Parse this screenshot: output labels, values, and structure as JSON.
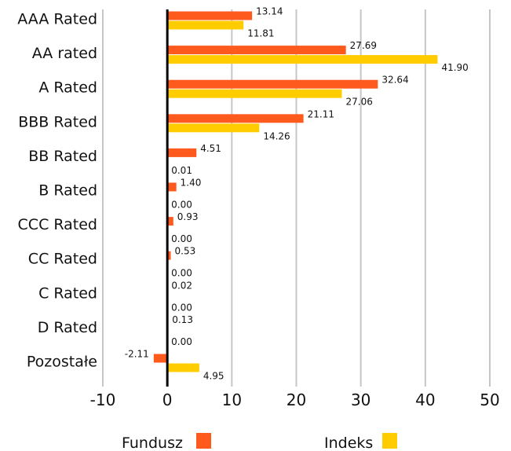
{
  "chart_data": {
    "type": "bar",
    "orientation": "horizontal",
    "categories": [
      "AAA Rated",
      "AA rated",
      "A Rated",
      "BBB Rated",
      "BB Rated",
      "B Rated",
      "CCC Rated",
      "CC Rated",
      "C Rated",
      "D Rated",
      "Pozostałe"
    ],
    "series": [
      {
        "name": "Fundusz",
        "color": "#ff5a1e",
        "values": [
          13.14,
          27.69,
          32.64,
          21.11,
          4.51,
          1.4,
          0.93,
          0.53,
          0.02,
          0.13,
          -2.11
        ],
        "labels": [
          "13.14",
          "27.69",
          "32.64",
          "21.11",
          "4.51",
          "1.40",
          "0.93",
          "0.53",
          "0.02",
          "0.13",
          "-2.11"
        ]
      },
      {
        "name": "Indeks",
        "color": "#ffcc00",
        "values": [
          11.81,
          41.9,
          27.06,
          14.26,
          0.01,
          0.0,
          0.0,
          0.0,
          0.0,
          0.0,
          4.95
        ],
        "labels": [
          "11.81",
          "41.90",
          "27.06",
          "14.26",
          "0.01",
          "0.00",
          "0.00",
          "0.00",
          "0.00",
          "0.00",
          "4.95"
        ]
      }
    ],
    "xlim": [
      -10,
      50
    ],
    "xticks": [
      -10,
      0,
      10,
      20,
      30,
      40,
      50
    ],
    "xtick_labels": [
      "-10",
      "0",
      "10",
      "20",
      "30",
      "40",
      "50"
    ],
    "grid": true,
    "legend_position": "bottom"
  }
}
